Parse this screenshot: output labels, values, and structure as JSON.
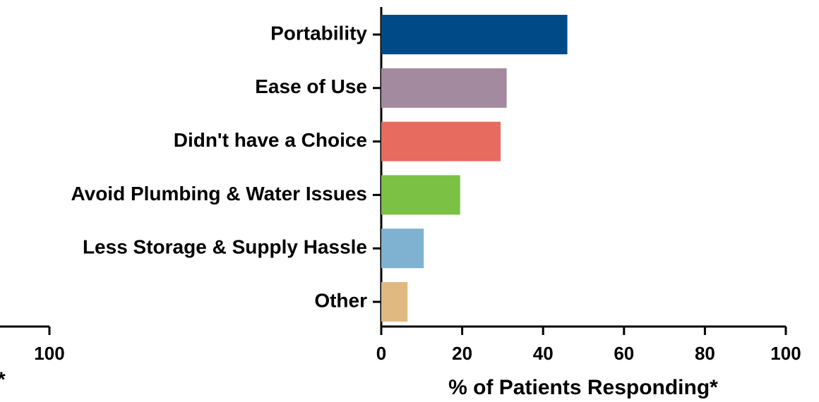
{
  "chart_data": {
    "type": "hbar",
    "categories": [
      "Portability",
      "Ease of Use",
      "Didn't have a Choice",
      "Avoid Plumbing & Water Issues",
      "Less Storage & Supply Hassle",
      "Other"
    ],
    "values": [
      46,
      31,
      29.5,
      19.5,
      10.5,
      6.5
    ],
    "colors": [
      "#004a87",
      "#a38a9f",
      "#e76b5e",
      "#7bc143",
      "#7fb2d1",
      "#e0b981"
    ],
    "xlim": [
      0,
      100
    ],
    "xticks": [
      0,
      20,
      40,
      60,
      80,
      100
    ],
    "xlabel": "% of Patients Responding*"
  },
  "cropped_neighbor": {
    "xticks": [
      100
    ],
    "xlabel_fragment": "*"
  }
}
